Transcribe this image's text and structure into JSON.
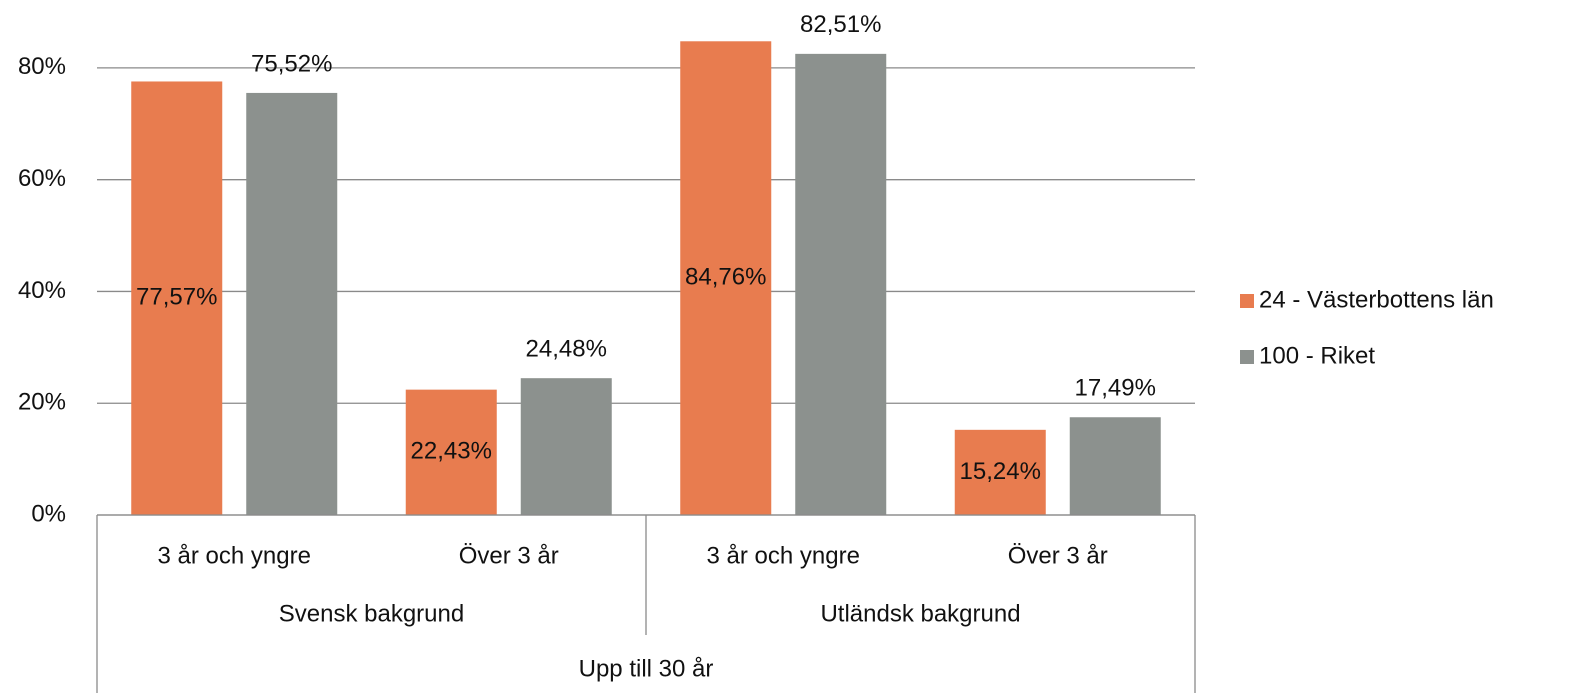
{
  "chart_data": {
    "type": "bar",
    "categories": [
      "3 år och yngre",
      "Över 3 år",
      "3 år och yngre",
      "Över 3 år"
    ],
    "category_groups": [
      "Svensk bakgrund",
      "Utländsk bakgrund"
    ],
    "category_outer_group": "Upp till 30 år",
    "series": [
      {
        "name": "24 - Västerbottens län",
        "color": "#e87c4f",
        "values": [
          77.57,
          22.43,
          84.76,
          15.24
        ],
        "value_labels": [
          "77,57%",
          "22,43%",
          "84,76%",
          "15,24%"
        ]
      },
      {
        "name": "100 - Riket",
        "color": "#8c918e",
        "values": [
          75.52,
          24.48,
          82.51,
          17.49
        ],
        "value_labels": [
          "75,52%",
          "24,48%",
          "82,51%",
          "17,49%"
        ]
      }
    ],
    "ylim": [
      0,
      90
    ],
    "yticks": [
      {
        "value": 0,
        "label": "0%"
      },
      {
        "value": 20,
        "label": "20%"
      },
      {
        "value": 40,
        "label": "40%"
      },
      {
        "value": 60,
        "label": "60%"
      },
      {
        "value": 80,
        "label": "80%"
      }
    ],
    "grid": true,
    "legend": "right"
  }
}
